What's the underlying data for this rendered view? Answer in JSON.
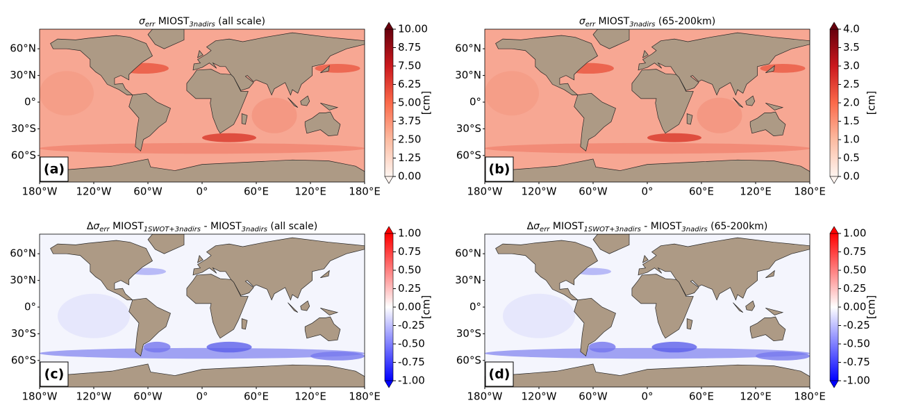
{
  "map_axes": {
    "lat_ticks": [
      {
        "value": 60,
        "label": "60°N"
      },
      {
        "value": 30,
        "label": "30°N"
      },
      {
        "value": 0,
        "label": "0°"
      },
      {
        "value": -30,
        "label": "30°S"
      },
      {
        "value": -60,
        "label": "60°S"
      }
    ],
    "lon_ticks": [
      {
        "value": -180,
        "label": "180°W"
      },
      {
        "value": -120,
        "label": "120°W"
      },
      {
        "value": -60,
        "label": "60°W"
      },
      {
        "value": 0,
        "label": "0°"
      },
      {
        "value": 60,
        "label": "60°E"
      },
      {
        "value": 120,
        "label": "120°E"
      },
      {
        "value": 180,
        "label": "180°E"
      }
    ]
  },
  "panels": [
    {
      "label": "(a)",
      "colormap": "reds",
      "title": [
        {
          "text": "σ",
          "italic": true
        },
        {
          "text": "err",
          "italic": true,
          "sub": true
        },
        {
          "text": " MIOST"
        },
        {
          "text": "3nadirs",
          "italic": true,
          "sub": true
        },
        {
          "text": " (all scale)"
        }
      ],
      "colorbar": {
        "label": "[cm]",
        "range": [
          0,
          10
        ],
        "ticks": [
          {
            "value": 0,
            "label": "0.00"
          },
          {
            "value": 1.25,
            "label": "1.25"
          },
          {
            "value": 2.5,
            "label": "2.50"
          },
          {
            "value": 3.75,
            "label": "3.75"
          },
          {
            "value": 5,
            "label": "5.00"
          },
          {
            "value": 6.25,
            "label": "6.25"
          },
          {
            "value": 7.5,
            "label": "7.50"
          },
          {
            "value": 8.75,
            "label": "8.75"
          },
          {
            "value": 10,
            "label": "10.00"
          }
        ]
      }
    },
    {
      "label": "(b)",
      "colormap": "reds",
      "title": [
        {
          "text": "σ",
          "italic": true
        },
        {
          "text": "err",
          "italic": true,
          "sub": true
        },
        {
          "text": " MIOST"
        },
        {
          "text": "3nadirs",
          "italic": true,
          "sub": true
        },
        {
          "text": " (65-200km)"
        }
      ],
      "colorbar": {
        "label": "[cm]",
        "range": [
          0,
          4
        ],
        "ticks": [
          {
            "value": 0,
            "label": "0.0"
          },
          {
            "value": 0.5,
            "label": "0.5"
          },
          {
            "value": 1,
            "label": "1.0"
          },
          {
            "value": 1.5,
            "label": "1.5"
          },
          {
            "value": 2,
            "label": "2.0"
          },
          {
            "value": 2.5,
            "label": "2.5"
          },
          {
            "value": 3,
            "label": "3.0"
          },
          {
            "value": 3.5,
            "label": "3.5"
          },
          {
            "value": 4,
            "label": "4.0"
          }
        ]
      }
    },
    {
      "label": "(c)",
      "colormap": "bwr",
      "title": [
        {
          "text": "Δ"
        },
        {
          "text": "σ",
          "italic": true
        },
        {
          "text": "err",
          "italic": true,
          "sub": true
        },
        {
          "text": " MIOST"
        },
        {
          "text": "1SWOT+3nadirs",
          "italic": true,
          "sub": true
        },
        {
          "text": " - MIOST"
        },
        {
          "text": "3nadirs",
          "italic": true,
          "sub": true
        },
        {
          "text": " (all scale)"
        }
      ],
      "colorbar": {
        "label": "[cm]",
        "range": [
          -1,
          1
        ],
        "ticks": [
          {
            "value": -1,
            "label": "-1.00"
          },
          {
            "value": -0.75,
            "label": "-0.75"
          },
          {
            "value": -0.5,
            "label": "-0.50"
          },
          {
            "value": -0.25,
            "label": "-0.25"
          },
          {
            "value": 0,
            "label": "0.00"
          },
          {
            "value": 0.25,
            "label": "0.25"
          },
          {
            "value": 0.5,
            "label": "0.50"
          },
          {
            "value": 0.75,
            "label": "0.75"
          },
          {
            "value": 1,
            "label": "1.00"
          }
        ]
      }
    },
    {
      "label": "(d)",
      "colormap": "bwr",
      "title": [
        {
          "text": "Δ"
        },
        {
          "text": "σ",
          "italic": true
        },
        {
          "text": "err",
          "italic": true,
          "sub": true
        },
        {
          "text": " MIOST"
        },
        {
          "text": "1SWOT+3nadirs",
          "italic": true,
          "sub": true
        },
        {
          "text": " - MIOST"
        },
        {
          "text": "3nadirs",
          "italic": true,
          "sub": true
        },
        {
          "text": " (65-200km)"
        }
      ],
      "colorbar": {
        "label": "[cm]",
        "range": [
          -1,
          1
        ],
        "ticks": [
          {
            "value": -1,
            "label": "-1.00"
          },
          {
            "value": -0.75,
            "label": "-0.75"
          },
          {
            "value": -0.5,
            "label": "-0.50"
          },
          {
            "value": -0.25,
            "label": "-0.25"
          },
          {
            "value": 0,
            "label": "0.00"
          },
          {
            "value": 0.25,
            "label": "0.25"
          },
          {
            "value": 0.5,
            "label": "0.50"
          },
          {
            "value": 0.75,
            "label": "0.75"
          },
          {
            "value": 1,
            "label": "1.00"
          }
        ]
      }
    }
  ]
}
